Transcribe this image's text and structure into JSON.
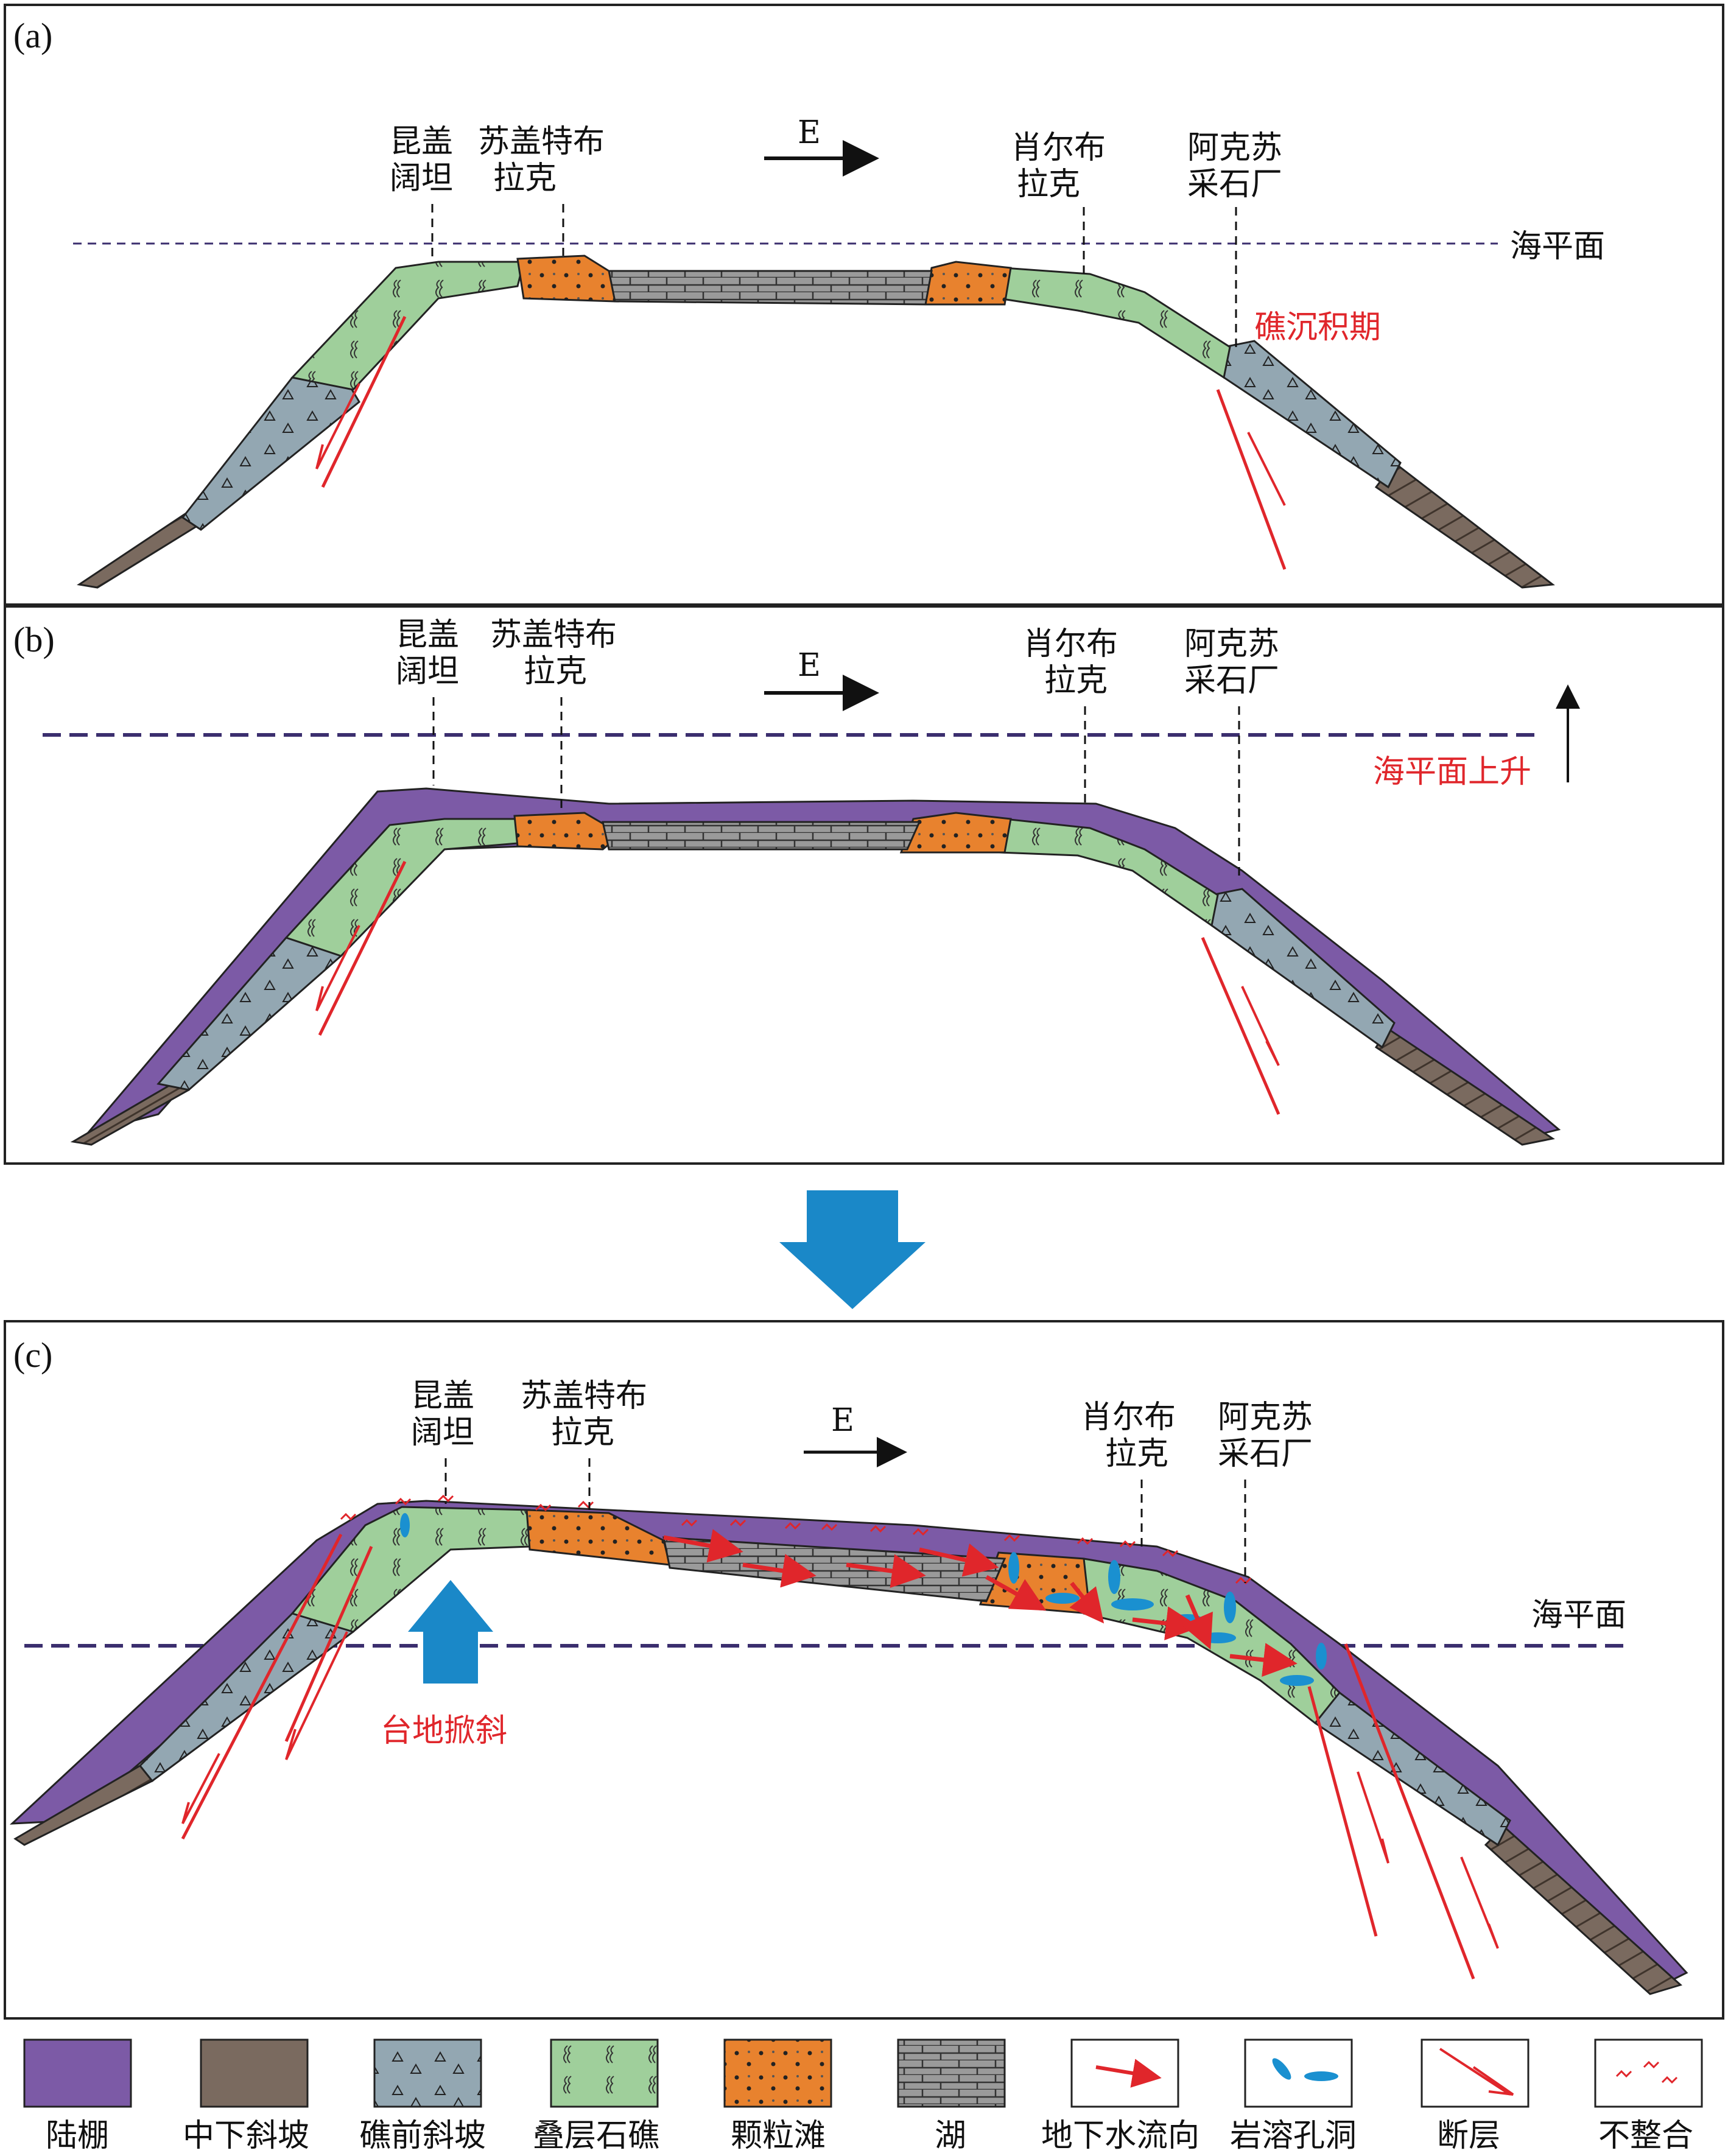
{
  "panels": [
    {
      "tag": "(a)",
      "direction": "E",
      "locations": [
        {
          "line1": "昆盖",
          "line2": "阔坦"
        },
        {
          "line1": "苏盖特布",
          "line2": "拉克"
        },
        {
          "line1": "肖尔布",
          "line2": "拉克"
        },
        {
          "line1": "阿克苏",
          "line2": "采石厂"
        }
      ],
      "sea_level_label": "海平面",
      "stage_label": "礁沉积期"
    },
    {
      "tag": "(b)",
      "direction": "E",
      "locations": [
        {
          "line1": "昆盖",
          "line2": "阔坦"
        },
        {
          "line1": "苏盖特布",
          "line2": "拉克"
        },
        {
          "line1": "肖尔布",
          "line2": "拉克"
        },
        {
          "line1": "阿克苏",
          "line2": "采石厂"
        }
      ],
      "sea_level_label": "海平面上升"
    },
    {
      "tag": "(c)",
      "direction": "E",
      "locations": [
        {
          "line1": "昆盖",
          "line2": "阔坦"
        },
        {
          "line1": "苏盖特布",
          "line2": "拉克"
        },
        {
          "line1": "肖尔布",
          "line2": "拉克"
        },
        {
          "line1": "阿克苏",
          "line2": "采石厂"
        }
      ],
      "sea_level_label": "海平面",
      "uplift_label": "台地掀斜"
    }
  ],
  "legend": [
    {
      "label": "陆棚",
      "color": "#7c5aa6"
    },
    {
      "label": "中下斜坡",
      "color": "#7a6a5f"
    },
    {
      "label": "礁前斜坡",
      "color": "#93a7b2"
    },
    {
      "label": "叠层石礁",
      "color": "#9fcf9b"
    },
    {
      "label": "颗粒滩",
      "color": "#e8822e"
    },
    {
      "label": "湖",
      "color": "#9a9a9a"
    },
    {
      "label": "地下水流向",
      "color": "#e0262b"
    },
    {
      "label": "岩溶孔洞",
      "color": "#1a90d0"
    },
    {
      "label": "断层",
      "color": "#e0262b"
    },
    {
      "label": "不整合",
      "color": "#e0262b"
    }
  ],
  "colors": {
    "shelf": "#7c5aa6",
    "lower_slope": "#7a6a5f",
    "fore_reef": "#93a7b2",
    "reef": "#9fcf9b",
    "shoal": "#e8822e",
    "lagoon": "#9a9a9a",
    "flow": "#e0262b",
    "karst": "#1a90d0",
    "fault": "#e0262b",
    "sea_level": "#3b2e6e",
    "transition_arrow": "#1a88c8"
  }
}
